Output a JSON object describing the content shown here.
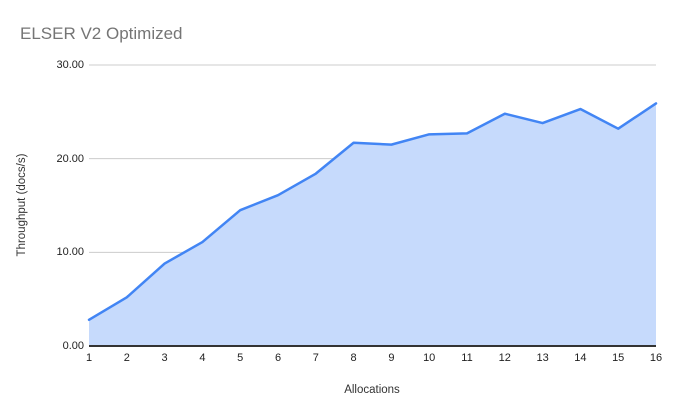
{
  "chart_data": {
    "type": "area",
    "title": "ELSER V2 Optimized",
    "xlabel": "Allocations",
    "ylabel": "Throughput (docs/s)",
    "categories": [
      "1",
      "2",
      "3",
      "4",
      "5",
      "6",
      "7",
      "8",
      "9",
      "10",
      "11",
      "12",
      "13",
      "14",
      "15",
      "16"
    ],
    "values": [
      2.8,
      5.2,
      8.8,
      11.1,
      14.5,
      16.1,
      18.4,
      21.7,
      21.5,
      22.6,
      22.7,
      24.8,
      23.8,
      25.3,
      23.2,
      25.9
    ],
    "series_name": "Throughput (docs/s)",
    "ylim": [
      0,
      30
    ],
    "y_tick_values": [
      0,
      10,
      20,
      30
    ],
    "y_tick_labels": [
      "0.00",
      "10.00",
      "20.00",
      "30.00"
    ],
    "grid": "horizontal",
    "legend": "none",
    "colors": {
      "line": "#4285f4",
      "fill": "#c6dafc",
      "gridline": "#cccccc",
      "axis_line": "#333333",
      "title_text": "#757575",
      "tick_text": "#222222",
      "axis_title_text": "#333333",
      "background": "#ffffff"
    }
  }
}
